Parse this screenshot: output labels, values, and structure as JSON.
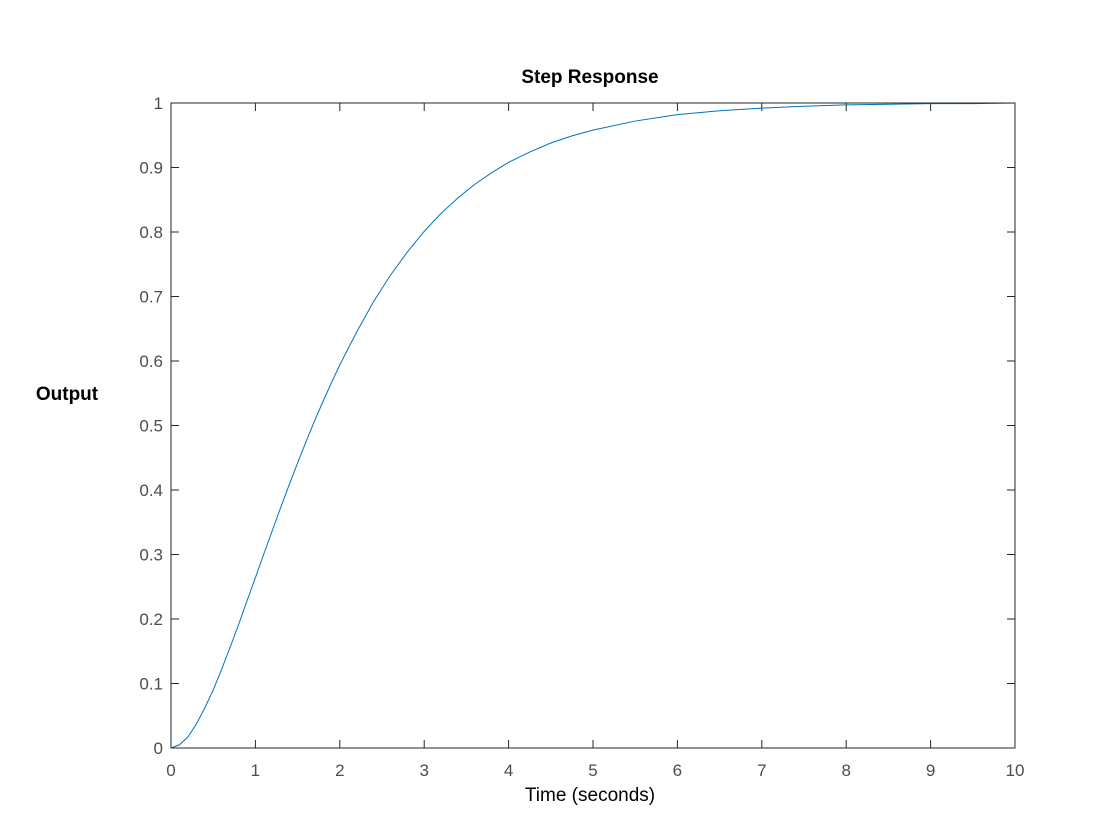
{
  "chart_data": {
    "type": "line",
    "title": "Step Response",
    "xlabel": "Time (seconds)",
    "ylabel": "Output",
    "xlim": [
      0,
      10
    ],
    "ylim": [
      0,
      1
    ],
    "xticks": [
      0,
      1,
      2,
      3,
      4,
      5,
      6,
      7,
      8,
      9,
      10
    ],
    "yticks": [
      0,
      0.1,
      0.2,
      0.3,
      0.4,
      0.5,
      0.6,
      0.7,
      0.8,
      0.9,
      1
    ],
    "grid": false,
    "series": [
      {
        "color": "#0072bd",
        "x": [
          0,
          0.1,
          0.2,
          0.3,
          0.4,
          0.5,
          0.6,
          0.7,
          0.8,
          0.9,
          1.0,
          1.1,
          1.2,
          1.3,
          1.4,
          1.5,
          1.6,
          1.7,
          1.8,
          1.9,
          2.0,
          2.2,
          2.4,
          2.6,
          2.8,
          3.0,
          3.2,
          3.4,
          3.6,
          3.8,
          4.0,
          4.25,
          4.5,
          4.75,
          5.0,
          5.5,
          6.0,
          6.5,
          7.0,
          7.5,
          8.0,
          8.5,
          9.0,
          9.5,
          10.0
        ],
        "y": [
          0,
          0.005,
          0.017,
          0.037,
          0.062,
          0.09,
          0.122,
          0.156,
          0.191,
          0.228,
          0.264,
          0.301,
          0.337,
          0.373,
          0.408,
          0.442,
          0.475,
          0.507,
          0.537,
          0.566,
          0.594,
          0.645,
          0.692,
          0.733,
          0.769,
          0.801,
          0.829,
          0.853,
          0.874,
          0.892,
          0.908,
          0.924,
          0.938,
          0.949,
          0.958,
          0.972,
          0.982,
          0.988,
          0.992,
          0.995,
          0.997,
          0.998,
          0.999,
          0.999,
          1.0
        ]
      }
    ]
  }
}
